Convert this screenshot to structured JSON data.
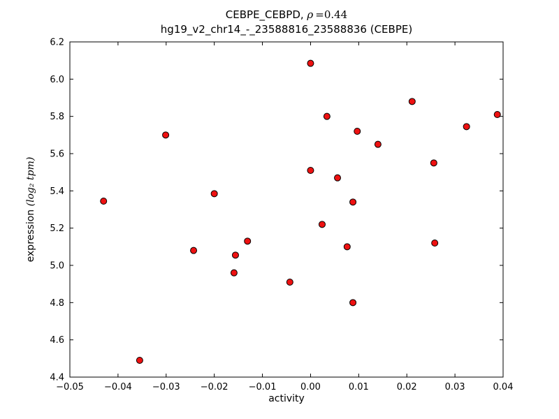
{
  "chart_data": {
    "type": "scatter",
    "title_parts": {
      "prefix": "CEBPE_CEBPD, ",
      "rho": "ρ",
      "rho_value": "=0.44"
    },
    "subtitle": "hg19_v2_chr14_-_23588816_23588836 (CEBPE)",
    "xlabel": "activity",
    "ylabel_parts": {
      "prefix": "expression ",
      "math": "(log₂ tpm)"
    },
    "xlim": [
      -0.05,
      0.04
    ],
    "ylim": [
      4.4,
      6.2
    ],
    "xtick_values": [
      -0.05,
      -0.04,
      -0.03,
      -0.02,
      -0.01,
      0,
      0.01,
      0.02,
      0.03,
      0.04
    ],
    "xtick_labels": [
      "−0.05",
      "−0.04",
      "−0.03",
      "−0.02",
      "−0.01",
      "0.00",
      "0.01",
      "0.02",
      "0.03",
      "0.04"
    ],
    "ytick_values": [
      4.4,
      4.6,
      4.8,
      5.0,
      5.2,
      5.4,
      5.6,
      5.8,
      6.0,
      6.2
    ],
    "ytick_labels": [
      "4.4",
      "4.6",
      "4.8",
      "5.0",
      "5.2",
      "5.4",
      "5.6",
      "5.8",
      "6.0",
      "6.2"
    ],
    "grid": false,
    "legend": null,
    "marker": {
      "shape": "circle",
      "color": "#ee1111",
      "edge_color": "#000000",
      "radius": 4.5
    },
    "points": [
      [
        -0.043,
        5.345
      ],
      [
        -0.0355,
        4.49
      ],
      [
        -0.0301,
        5.7
      ],
      [
        -0.0243,
        5.08
      ],
      [
        -0.02,
        5.385
      ],
      [
        -0.0156,
        5.055
      ],
      [
        -0.0159,
        4.96
      ],
      [
        -0.0131,
        5.13
      ],
      [
        -0.0043,
        4.91
      ],
      [
        0.0,
        6.085
      ],
      [
        0.0,
        5.51
      ],
      [
        0.0034,
        5.8
      ],
      [
        0.0024,
        5.22
      ],
      [
        0.0056,
        5.47
      ],
      [
        0.0076,
        5.1
      ],
      [
        0.0088,
        5.34
      ],
      [
        0.0097,
        5.72
      ],
      [
        0.0088,
        4.8
      ],
      [
        0.014,
        5.65
      ],
      [
        0.0211,
        5.88
      ],
      [
        0.0256,
        5.55
      ],
      [
        0.0258,
        5.12
      ],
      [
        0.0324,
        5.745
      ],
      [
        0.0388,
        5.81
      ]
    ]
  }
}
